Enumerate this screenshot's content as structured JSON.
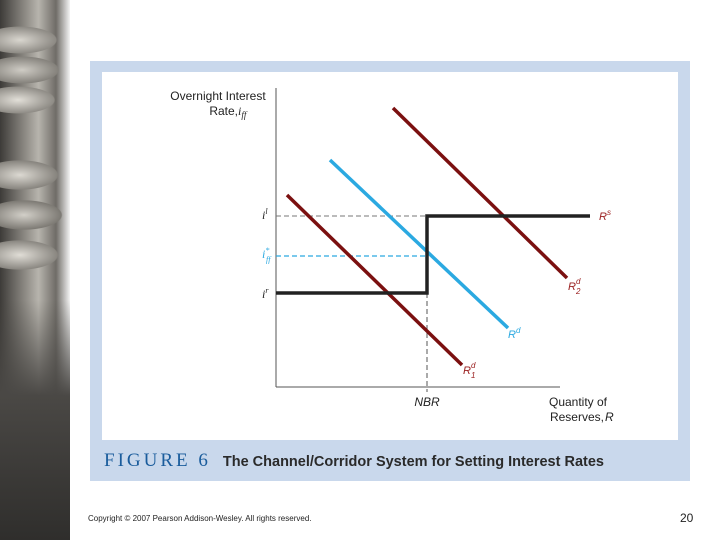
{
  "figure": {
    "label": "FIGURE 6",
    "title": "The Channel/Corridor System for Setting Interest Rates",
    "y_axis_title": [
      "Overnight Interest",
      "Rate, "
    ],
    "y_axis_var": "i",
    "y_axis_var_sub": "ff",
    "x_axis_title": [
      "Quantity of",
      "Reserves, "
    ],
    "x_axis_var": "R",
    "nbr_label": "NBR",
    "rate_labels": {
      "upper": {
        "base": "i",
        "sup": "l"
      },
      "target": {
        "base": "i",
        "sup": "*",
        "sub": "ff"
      },
      "lower": {
        "base": "i",
        "sup": "r"
      }
    },
    "curve_labels": {
      "supply": {
        "base": "R",
        "sup": "s"
      },
      "demand": {
        "base": "R",
        "sup": "d"
      },
      "demand2": {
        "base": "R",
        "sup": "d",
        "sub": "2"
      },
      "demand1": {
        "base": "R",
        "sup": "d",
        "sub": "1"
      }
    },
    "colors": {
      "supply": "#222222",
      "demand": "#2ba9e1",
      "shifted_demand": "#7b1010",
      "label_blue": "#2ba9e1",
      "label_red": "#9b2020",
      "caption_blue": "#1a5c9c",
      "panel": "#c9d8ec"
    }
  },
  "footer": {
    "copyright": "Copyright © 2007 Pearson Addison-Wesley. All rights reserved.",
    "page_number": "20"
  }
}
